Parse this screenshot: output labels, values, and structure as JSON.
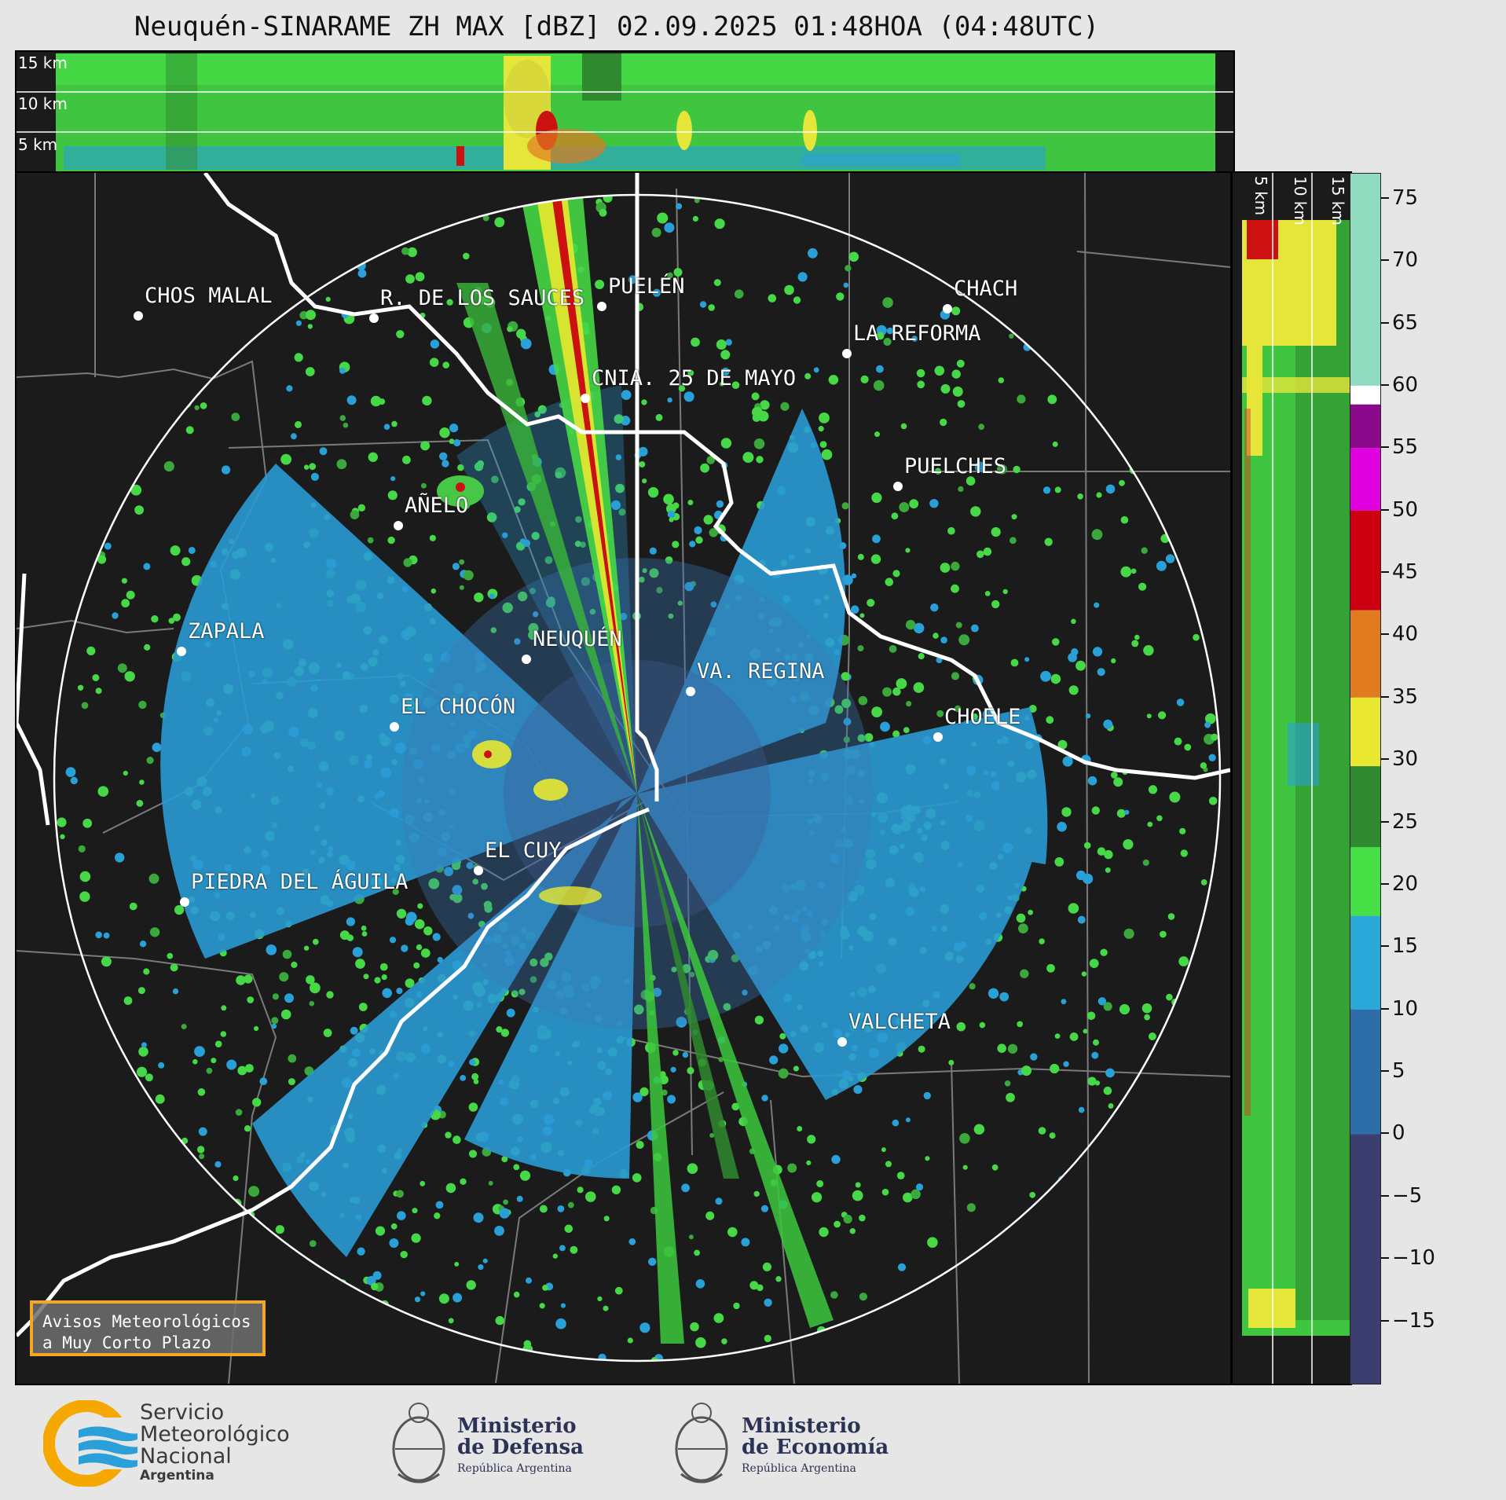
{
  "title": "Neuquén-SINARAME ZH MAX [dBZ] 02.09.2025 01:48HOA (04:48UTC)",
  "top_panel": {
    "height_labels": [
      "15 km",
      "10 km",
      "5 km"
    ]
  },
  "right_panel": {
    "height_labels": [
      "5 km",
      "10 km",
      "15 km"
    ]
  },
  "colorbar": {
    "unit": "dBZ",
    "tick_labels": [
      "75",
      "70",
      "65",
      "60",
      "55",
      "50",
      "45",
      "40",
      "35",
      "30",
      "25",
      "20",
      "15",
      "10",
      "5",
      "0",
      "−5",
      "−10",
      "−15"
    ],
    "range": [
      -20,
      77
    ],
    "colors": {
      "teal_high": "#8fdcc0",
      "white_60": "#ffffff",
      "purple_55": "#8b0a8b",
      "magenta_50": "#e000e0",
      "red_45": "#cc0011",
      "orange_40": "#e07b20",
      "yellow_30": "#e8e830",
      "green_25": "#2f8a2f",
      "green_20": "#46e046",
      "blue_15": "#2aa8d8",
      "blue_5": "#2d6ea8",
      "navy_low": "#3b3f70"
    }
  },
  "places": [
    {
      "id": "chos-malal",
      "name": "CHOS MALAL"
    },
    {
      "id": "r-de-los-sauces",
      "name": "R. DE LOS SAUCES"
    },
    {
      "id": "puelen",
      "name": "PUELÉN"
    },
    {
      "id": "chachharuaue",
      "name": "CHACH"
    },
    {
      "id": "la-reforma",
      "name": "LA REFORMA"
    },
    {
      "id": "cnia-25-de-mayo",
      "name": "CNIA. 25 DE MAYO"
    },
    {
      "id": "puelches",
      "name": "PUELCHES"
    },
    {
      "id": "anelo",
      "name": "AÑELO"
    },
    {
      "id": "zapala",
      "name": "ZAPALA"
    },
    {
      "id": "neuquen",
      "name": "NEUQUÉN"
    },
    {
      "id": "va-regina",
      "name": "VA. REGINA"
    },
    {
      "id": "el-chocon",
      "name": "EL CHOCÓN"
    },
    {
      "id": "choele",
      "name": "CHOELE"
    },
    {
      "id": "el-cuy",
      "name": "EL CUY"
    },
    {
      "id": "piedra-del-aguila",
      "name": "PIEDRA DEL ÁGUILA"
    },
    {
      "id": "valcheta",
      "name": "VALCHETA"
    }
  ],
  "avisos": {
    "line1": "Avisos Meteorológicos",
    "line2": "a Muy Corto Plazo"
  },
  "logos": {
    "smn": {
      "line1": "Servicio",
      "line2": "Meteorológico",
      "line3": "Nacional",
      "line4": "Argentina"
    },
    "defensa": {
      "line1": "Ministerio",
      "line2": "de Defensa",
      "line3": "República Argentina"
    },
    "economia": {
      "line1": "Ministerio",
      "line2": "de Economía",
      "line3": "República Argentina"
    }
  }
}
